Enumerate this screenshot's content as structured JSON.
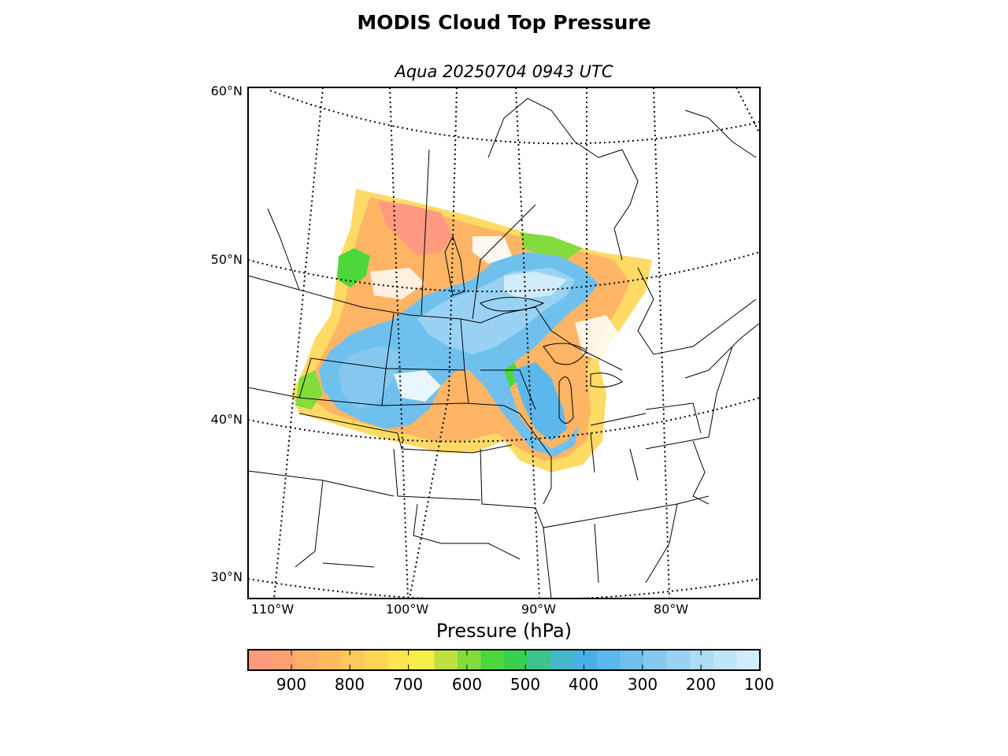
{
  "figure": {
    "title": "MODIS Cloud Top Pressure",
    "subtitle": "Aqua 20250704 0943 UTC"
  },
  "map": {
    "lat_labels": [
      "60°N",
      "50°N",
      "40°N",
      "30°N"
    ],
    "lon_labels": [
      "110°W",
      "100°W",
      "90°W",
      "80°W"
    ]
  },
  "colorbar": {
    "title": "Pressure (hPa)",
    "ticks": [
      "900",
      "800",
      "700",
      "600",
      "500",
      "400",
      "300",
      "200",
      "100"
    ],
    "colors": [
      "#ff9a80",
      "#ffa070",
      "#ffb066",
      "#ffbc5c",
      "#ffc85a",
      "#ffd654",
      "#ffe650",
      "#f6ee48",
      "#c0e040",
      "#84dc3c",
      "#4cd83c",
      "#38d050",
      "#3cc48c",
      "#44b8c8",
      "#48b0e4",
      "#5cb8ec",
      "#70c0ee",
      "#86c8f0",
      "#9ad2f4",
      "#aedcf6",
      "#c0e4f8",
      "#cfecfb"
    ]
  },
  "chart_data": {
    "type": "heatmap",
    "title": "MODIS Cloud Top Pressure",
    "subtitle": "Aqua 20250704 0943 UTC",
    "colorbar_label": "Pressure (hPa)",
    "colorbar_ticks": [
      900,
      800,
      700,
      600,
      500,
      400,
      300,
      200,
      100
    ],
    "lat_ticks": [
      "60°N",
      "50°N",
      "40°N",
      "30°N"
    ],
    "lon_ticks": [
      "110°W",
      "100°W",
      "90°W",
      "80°W"
    ],
    "grid": true
  }
}
